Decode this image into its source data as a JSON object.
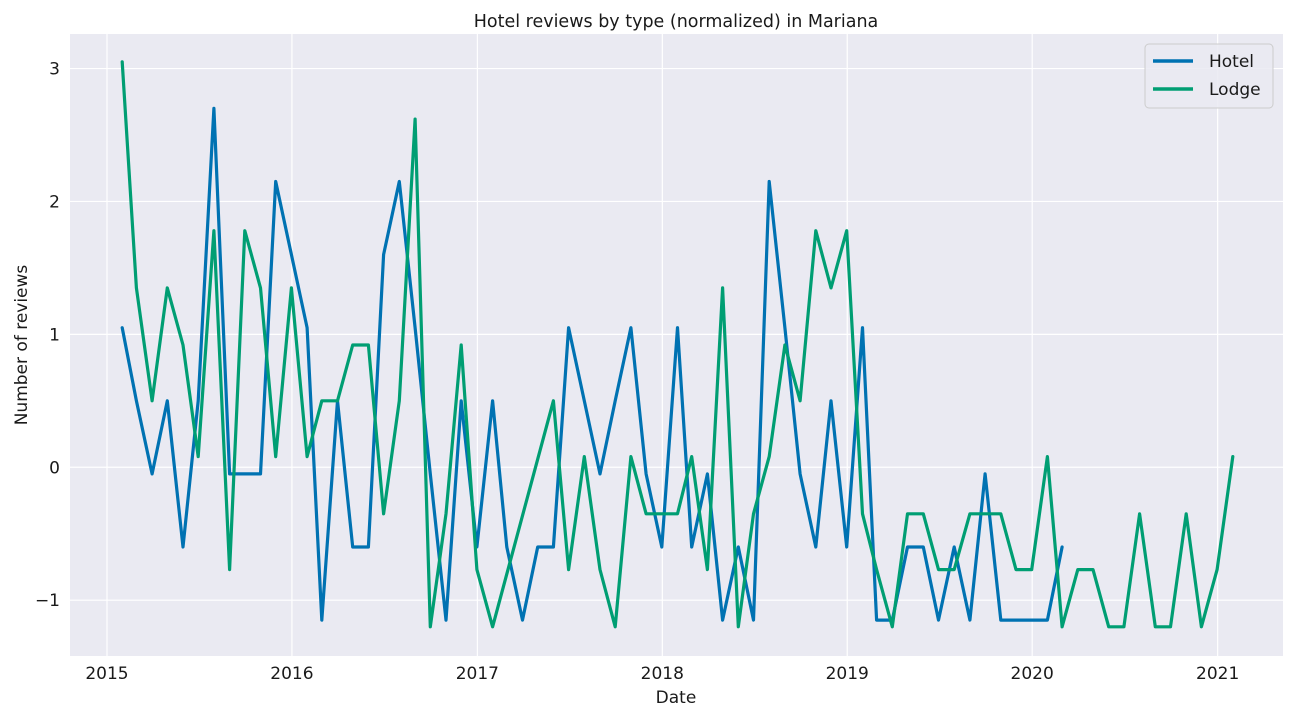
{
  "chart_data": {
    "type": "line",
    "title": "Hotel reviews by type (normalized) in Mariana",
    "xlabel": "Date",
    "ylabel": "Number of reviews",
    "x_ticks": [
      "2015",
      "2016",
      "2017",
      "2018",
      "2019",
      "2020",
      "2021"
    ],
    "y_ticks": [
      -1,
      0,
      1,
      2,
      3
    ],
    "y_tick_labels": [
      "−1",
      "0",
      "1",
      "2",
      "3"
    ],
    "xlim": [
      "2014-10-20",
      "2021-05-10"
    ],
    "ylim": [
      -1.42,
      3.26
    ],
    "grid": true,
    "legend_position": "top-right",
    "background": "#eaeaf2",
    "series": [
      {
        "name": "Hotel",
        "color": "#0072b2",
        "points": [
          [
            "2015-01-31",
            1.05
          ],
          [
            "2015-02-28",
            0.5
          ],
          [
            "2015-03-31",
            -0.05
          ],
          [
            "2015-04-30",
            0.5
          ],
          [
            "2015-05-31",
            -0.6
          ],
          [
            "2015-06-30",
            0.5
          ],
          [
            "2015-07-31",
            2.7
          ],
          [
            "2015-08-31",
            -0.05
          ],
          [
            "2015-09-30",
            -0.05
          ],
          [
            "2015-10-31",
            -0.05
          ],
          [
            "2015-11-30",
            2.15
          ],
          [
            "2015-12-31",
            1.6
          ],
          [
            "2016-01-31",
            1.05
          ],
          [
            "2016-02-29",
            -1.15
          ],
          [
            "2016-03-31",
            0.5
          ],
          [
            "2016-04-30",
            -0.6
          ],
          [
            "2016-05-31",
            -0.6
          ],
          [
            "2016-06-30",
            1.6
          ],
          [
            "2016-07-31",
            2.15
          ],
          [
            "2016-08-31",
            1.05
          ],
          [
            "2016-09-30",
            -0.05
          ],
          [
            "2016-10-31",
            -1.15
          ],
          [
            "2016-11-30",
            0.5
          ],
          [
            "2016-12-31",
            -0.6
          ],
          [
            "2017-01-31",
            0.5
          ],
          [
            "2017-02-28",
            -0.6
          ],
          [
            "2017-03-31",
            -1.15
          ],
          [
            "2017-04-30",
            -0.6
          ],
          [
            "2017-05-31",
            -0.6
          ],
          [
            "2017-06-30",
            1.05
          ],
          [
            "2017-07-31",
            0.5
          ],
          [
            "2017-08-31",
            -0.05
          ],
          [
            "2017-09-30",
            0.5
          ],
          [
            "2017-10-31",
            1.05
          ],
          [
            "2017-11-30",
            -0.05
          ],
          [
            "2017-12-31",
            -0.6
          ],
          [
            "2018-01-31",
            1.05
          ],
          [
            "2018-02-28",
            -0.6
          ],
          [
            "2018-03-31",
            -0.05
          ],
          [
            "2018-04-30",
            -1.15
          ],
          [
            "2018-05-31",
            -0.6
          ],
          [
            "2018-06-30",
            -1.15
          ],
          [
            "2018-07-31",
            2.15
          ],
          [
            "2018-08-31",
            1.05
          ],
          [
            "2018-09-30",
            -0.05
          ],
          [
            "2018-10-31",
            -0.6
          ],
          [
            "2018-11-30",
            0.5
          ],
          [
            "2018-12-31",
            -0.6
          ],
          [
            "2019-01-31",
            1.05
          ],
          [
            "2019-02-28",
            -1.15
          ],
          [
            "2019-03-31",
            -1.15
          ],
          [
            "2019-04-30",
            -0.6
          ],
          [
            "2019-05-31",
            -0.6
          ],
          [
            "2019-06-30",
            -1.15
          ],
          [
            "2019-07-31",
            -0.6
          ],
          [
            "2019-08-31",
            -1.15
          ],
          [
            "2019-09-30",
            -0.05
          ],
          [
            "2019-10-31",
            -1.15
          ],
          [
            "2019-11-30",
            -1.15
          ],
          [
            "2019-12-31",
            -1.15
          ],
          [
            "2020-01-31",
            -1.15
          ],
          [
            "2020-02-29",
            -0.6
          ]
        ]
      },
      {
        "name": "Lodge",
        "color": "#009e73",
        "points": [
          [
            "2015-01-31",
            3.05
          ],
          [
            "2015-02-28",
            1.35
          ],
          [
            "2015-03-31",
            0.5
          ],
          [
            "2015-04-30",
            1.35
          ],
          [
            "2015-05-31",
            0.92
          ],
          [
            "2015-06-30",
            0.08
          ],
          [
            "2015-07-31",
            1.78
          ],
          [
            "2015-08-31",
            -0.77
          ],
          [
            "2015-09-30",
            1.78
          ],
          [
            "2015-10-31",
            1.35
          ],
          [
            "2015-11-30",
            0.08
          ],
          [
            "2015-12-31",
            1.35
          ],
          [
            "2016-01-31",
            0.08
          ],
          [
            "2016-02-29",
            0.5
          ],
          [
            "2016-03-31",
            0.5
          ],
          [
            "2016-04-30",
            0.92
          ],
          [
            "2016-05-31",
            0.92
          ],
          [
            "2016-06-30",
            -0.35
          ],
          [
            "2016-07-31",
            0.5
          ],
          [
            "2016-08-31",
            2.62
          ],
          [
            "2016-09-30",
            -1.2
          ],
          [
            "2016-10-31",
            -0.35
          ],
          [
            "2016-11-30",
            0.92
          ],
          [
            "2016-12-31",
            -0.77
          ],
          [
            "2017-01-31",
            -1.2
          ],
          [
            "2017-05-31",
            0.5
          ],
          [
            "2017-06-30",
            -0.77
          ],
          [
            "2017-07-31",
            0.08
          ],
          [
            "2017-08-31",
            -0.77
          ],
          [
            "2017-09-30",
            -1.2
          ],
          [
            "2017-10-31",
            0.08
          ],
          [
            "2017-11-30",
            -0.35
          ],
          [
            "2017-12-31",
            -0.35
          ],
          [
            "2018-01-31",
            -0.35
          ],
          [
            "2018-02-28",
            0.08
          ],
          [
            "2018-03-31",
            -0.77
          ],
          [
            "2018-04-30",
            1.35
          ],
          [
            "2018-05-31",
            -1.2
          ],
          [
            "2018-06-30",
            -0.35
          ],
          [
            "2018-07-31",
            0.08
          ],
          [
            "2018-08-31",
            0.92
          ],
          [
            "2018-09-30",
            0.5
          ],
          [
            "2018-10-31",
            1.78
          ],
          [
            "2018-11-30",
            1.35
          ],
          [
            "2018-12-31",
            1.78
          ],
          [
            "2019-01-31",
            -0.35
          ],
          [
            "2019-02-28",
            -0.77
          ],
          [
            "2019-03-31",
            -1.2
          ],
          [
            "2019-04-30",
            -0.35
          ],
          [
            "2019-05-31",
            -0.35
          ],
          [
            "2019-06-30",
            -0.77
          ],
          [
            "2019-07-31",
            -0.77
          ],
          [
            "2019-08-31",
            -0.35
          ],
          [
            "2019-09-30",
            -0.35
          ],
          [
            "2019-10-31",
            -0.35
          ],
          [
            "2019-11-30",
            -0.77
          ],
          [
            "2019-12-31",
            -0.77
          ],
          [
            "2020-01-31",
            0.08
          ],
          [
            "2020-02-29",
            -1.2
          ],
          [
            "2020-03-31",
            -0.77
          ],
          [
            "2020-04-30",
            -0.77
          ],
          [
            "2020-05-31",
            -1.2
          ],
          [
            "2020-06-30",
            -1.2
          ],
          [
            "2020-07-31",
            -0.35
          ],
          [
            "2020-08-31",
            -1.2
          ],
          [
            "2020-09-30",
            -1.2
          ],
          [
            "2020-10-31",
            -0.35
          ],
          [
            "2020-11-30",
            -1.2
          ],
          [
            "2020-12-31",
            -0.77
          ],
          [
            "2021-01-31",
            0.08
          ]
        ]
      }
    ]
  }
}
